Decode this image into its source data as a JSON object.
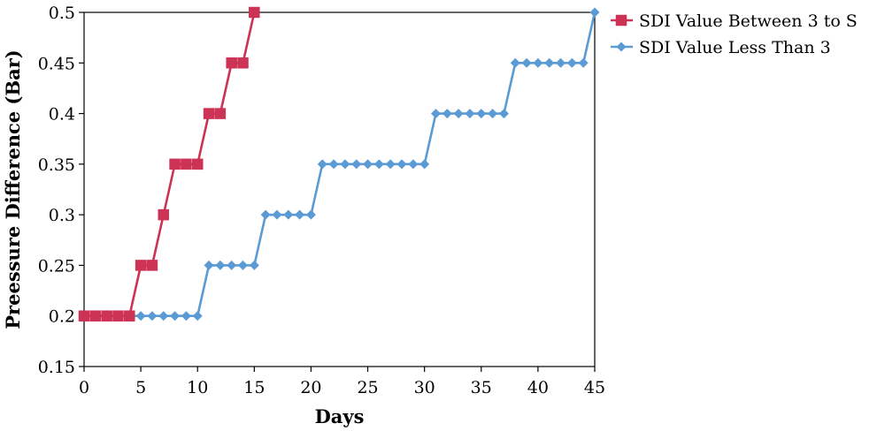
{
  "chart_data": {
    "type": "line",
    "title": "",
    "xlabel": "Days",
    "ylabel": "Preessure Difference (Bar)",
    "xlim": [
      0,
      45
    ],
    "ylim": [
      0.15,
      0.5
    ],
    "xticks": [
      0,
      5,
      10,
      15,
      20,
      25,
      30,
      35,
      40,
      45
    ],
    "yticks": [
      0.15,
      0.2,
      0.25,
      0.3,
      0.35,
      0.4,
      0.45,
      0.5
    ],
    "ytick_labels": [
      "0.15",
      "0.2",
      "0.25",
      "0.3",
      "0.35",
      "0.4",
      "0.45",
      "0.5"
    ],
    "grid": false,
    "legend_position": "top-right",
    "series": [
      {
        "name": "SDI Value Between 3 to S",
        "color": "#cc3355",
        "marker": "square",
        "x": [
          0,
          1,
          2,
          3,
          4,
          5,
          6,
          7,
          8,
          9,
          10,
          11,
          12,
          13,
          14,
          15
        ],
        "values": [
          0.2,
          0.2,
          0.2,
          0.2,
          0.2,
          0.25,
          0.25,
          0.3,
          0.35,
          0.35,
          0.35,
          0.4,
          0.4,
          0.45,
          0.45,
          0.5
        ]
      },
      {
        "name": "SDI Value Less Than 3",
        "color": "#5b9bd5",
        "marker": "diamond",
        "x": [
          0,
          1,
          2,
          3,
          4,
          5,
          6,
          7,
          8,
          9,
          10,
          11,
          12,
          13,
          14,
          15,
          16,
          17,
          18,
          19,
          20,
          21,
          22,
          23,
          24,
          25,
          26,
          27,
          28,
          29,
          30,
          31,
          32,
          33,
          34,
          35,
          36,
          37,
          38,
          39,
          40,
          41,
          42,
          43,
          44,
          45
        ],
        "values": [
          0.2,
          0.2,
          0.2,
          0.2,
          0.2,
          0.2,
          0.2,
          0.2,
          0.2,
          0.2,
          0.2,
          0.25,
          0.25,
          0.25,
          0.25,
          0.25,
          0.3,
          0.3,
          0.3,
          0.3,
          0.3,
          0.35,
          0.35,
          0.35,
          0.35,
          0.35,
          0.35,
          0.35,
          0.35,
          0.35,
          0.35,
          0.4,
          0.4,
          0.4,
          0.4,
          0.4,
          0.4,
          0.4,
          0.45,
          0.45,
          0.45,
          0.45,
          0.45,
          0.45,
          0.45,
          0.5
        ]
      }
    ]
  }
}
